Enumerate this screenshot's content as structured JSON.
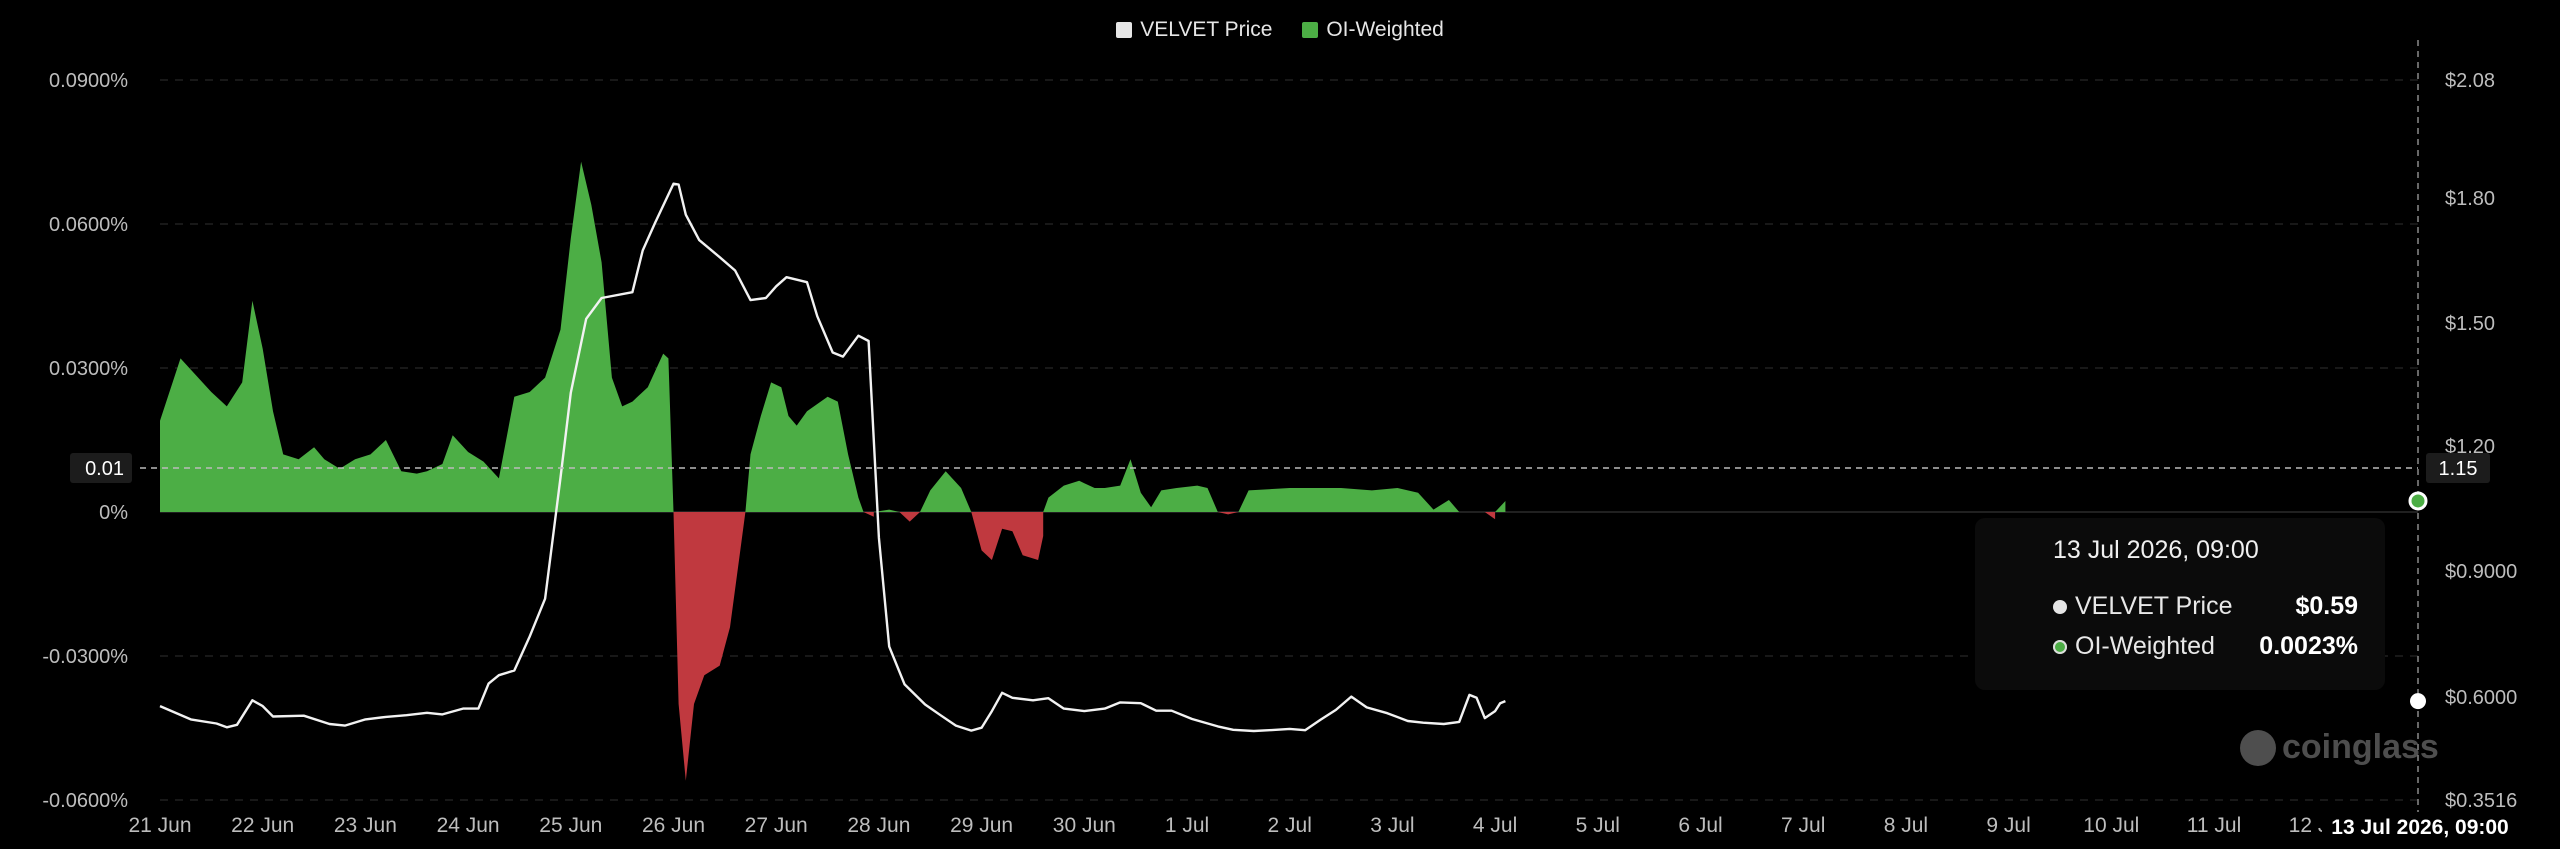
{
  "legend": {
    "price_label": "VELVET Price",
    "oi_label": "OI-Weighted",
    "price_color": "#e6e6e6",
    "oi_color": "#4cae45"
  },
  "tooltip": {
    "title": "13 Jul 2026, 09:00",
    "price_label": "VELVET Price",
    "price_value": "$0.59",
    "oi_label": "OI-Weighted",
    "oi_value": "0.0023%"
  },
  "crosshair": {
    "y_label": "0.01",
    "right_label": "1.15",
    "x_label": "13 Jul 2026, 09:00"
  },
  "watermark": "coinglass",
  "chart_data": {
    "type": "area",
    "x_labels": [
      "21 Jun",
      "22 Jun",
      "23 Jun",
      "24 Jun",
      "25 Jun",
      "26 Jun",
      "27 Jun",
      "28 Jun",
      "29 Jun",
      "30 Jun",
      "1 Jul",
      "2 Jul",
      "3 Jul",
      "4 Jul",
      "5 Jul",
      "6 Jul",
      "7 Jul",
      "8 Jul",
      "9 Jul",
      "10 Jul",
      "11 Jul",
      "12 Jul"
    ],
    "left_axis": {
      "ticks": [
        "0.0900%",
        "0.0600%",
        "0.0300%",
        "0%",
        "-0.0300%",
        "-0.0600%"
      ],
      "range": [
        -0.06,
        0.09
      ]
    },
    "right_axis": {
      "ticks": [
        "$2.08",
        "$1.80",
        "$1.50",
        "$1.20",
        "$0.9000",
        "$0.6000",
        "$0.3516"
      ],
      "range": [
        0.3516,
        2.08
      ]
    },
    "colors": {
      "positive": "#4cae45",
      "negative": "#c0393f",
      "price_line": "#f2f2f2"
    },
    "series": [
      {
        "name": "OI-Weighted",
        "unit": "%",
        "points": [
          [
            0,
            0.019
          ],
          [
            0.2,
            0.032
          ],
          [
            0.5,
            0.025
          ],
          [
            0.65,
            0.022
          ],
          [
            0.8,
            0.027
          ],
          [
            0.9,
            0.044
          ],
          [
            1,
            0.034
          ],
          [
            1.1,
            0.021
          ],
          [
            1.2,
            0.012
          ],
          [
            1.35,
            0.011
          ],
          [
            1.5,
            0.0135
          ],
          [
            1.6,
            0.011
          ],
          [
            1.75,
            0.009
          ],
          [
            1.9,
            0.011
          ],
          [
            2.05,
            0.012
          ],
          [
            2.2,
            0.015
          ],
          [
            2.35,
            0.0085
          ],
          [
            2.5,
            0.008
          ],
          [
            2.6,
            0.0085
          ],
          [
            2.75,
            0.01
          ],
          [
            2.85,
            0.016
          ],
          [
            3,
            0.0125
          ],
          [
            3.15,
            0.0105
          ],
          [
            3.3,
            0.007
          ],
          [
            3.45,
            0.024
          ],
          [
            3.6,
            0.025
          ],
          [
            3.75,
            0.028
          ],
          [
            3.9,
            0.038
          ],
          [
            4,
            0.057
          ],
          [
            4.1,
            0.073
          ],
          [
            4.2,
            0.064
          ],
          [
            4.3,
            0.052
          ],
          [
            4.4,
            0.028
          ],
          [
            4.5,
            0.022
          ],
          [
            4.6,
            0.023
          ],
          [
            4.75,
            0.026
          ],
          [
            4.9,
            0.033
          ],
          [
            4.95,
            0.032
          ],
          [
            5.0,
            0
          ],
          [
            5.05,
            -0.04
          ],
          [
            5.12,
            -0.056
          ],
          [
            5.2,
            -0.04
          ],
          [
            5.3,
            -0.034
          ],
          [
            5.45,
            -0.032
          ],
          [
            5.55,
            -0.024
          ],
          [
            5.65,
            -0.008
          ],
          [
            5.7,
            0
          ],
          [
            5.75,
            0.012
          ],
          [
            5.85,
            0.02
          ],
          [
            5.95,
            0.027
          ],
          [
            6.05,
            0.026
          ],
          [
            6.12,
            0.02
          ],
          [
            6.2,
            0.018
          ],
          [
            6.3,
            0.021
          ],
          [
            6.5,
            0.024
          ],
          [
            6.6,
            0.023
          ],
          [
            6.7,
            0.012
          ],
          [
            6.8,
            0.003
          ],
          [
            6.85,
            0
          ],
          [
            6.95,
            -0.001
          ],
          [
            7.1,
            0.0005
          ],
          [
            7.2,
            0
          ],
          [
            7.3,
            -0.002
          ],
          [
            7.4,
            0
          ],
          [
            7.5,
            0.0045
          ],
          [
            7.65,
            0.0085
          ],
          [
            7.8,
            0.005
          ],
          [
            7.9,
            0
          ],
          [
            8.0,
            -0.008
          ],
          [
            8.1,
            -0.01
          ],
          [
            8.2,
            -0.0035
          ],
          [
            8.3,
            -0.004
          ],
          [
            8.4,
            -0.009
          ],
          [
            8.55,
            -0.01
          ],
          [
            8.6,
            -0.005
          ],
          [
            8.65,
            0.003
          ],
          [
            8.8,
            0.0055
          ],
          [
            8.95,
            0.0065
          ],
          [
            9.0,
            0.006
          ],
          [
            9.1,
            0.005
          ],
          [
            9.2,
            0.005
          ],
          [
            9.35,
            0.0055
          ],
          [
            9.45,
            0.011
          ],
          [
            9.55,
            0.004
          ],
          [
            9.65,
            0.001
          ],
          [
            9.75,
            0.0045
          ],
          [
            9.9,
            0.005
          ],
          [
            10.1,
            0.0055
          ],
          [
            10.2,
            0.005
          ],
          [
            10.3,
            0
          ],
          [
            10.4,
            -0.0005
          ],
          [
            10.5,
            0
          ],
          [
            10.6,
            0.0045
          ],
          [
            11,
            0.005
          ],
          [
            11.5,
            0.005
          ],
          [
            11.8,
            0.0045
          ],
          [
            12.05,
            0.005
          ],
          [
            12.25,
            0.004
          ],
          [
            12.4,
            0.0005
          ],
          [
            12.55,
            0.0025
          ],
          [
            12.65,
            0
          ],
          [
            12.9,
            0
          ],
          [
            13.0,
            -0.0015
          ],
          [
            13.1,
            0.0023
          ]
        ]
      },
      {
        "name": "VELVET Price",
        "unit": "$",
        "points": [
          [
            0,
            0.578
          ],
          [
            0.3,
            0.546
          ],
          [
            0.55,
            0.536
          ],
          [
            0.65,
            0.527
          ],
          [
            0.75,
            0.533
          ],
          [
            0.9,
            0.592
          ],
          [
            1,
            0.578
          ],
          [
            1.1,
            0.553
          ],
          [
            1.4,
            0.555
          ],
          [
            1.65,
            0.535
          ],
          [
            1.8,
            0.531
          ],
          [
            2.0,
            0.546
          ],
          [
            2.2,
            0.552
          ],
          [
            2.4,
            0.556
          ],
          [
            2.6,
            0.562
          ],
          [
            2.75,
            0.558
          ],
          [
            2.95,
            0.572
          ],
          [
            3.1,
            0.572
          ],
          [
            3.2,
            0.632
          ],
          [
            3.3,
            0.652
          ],
          [
            3.45,
            0.663
          ],
          [
            3.6,
            0.744
          ],
          [
            3.75,
            0.834
          ],
          [
            3.9,
            1.124
          ],
          [
            4,
            1.33
          ],
          [
            4.15,
            1.51
          ],
          [
            4.3,
            1.56
          ],
          [
            4.6,
            1.574
          ],
          [
            4.7,
            1.674
          ],
          [
            4.82,
            1.74
          ],
          [
            5.0,
            1.834
          ],
          [
            5.05,
            1.832
          ],
          [
            5.12,
            1.76
          ],
          [
            5.25,
            1.699
          ],
          [
            5.45,
            1.658
          ],
          [
            5.6,
            1.626
          ],
          [
            5.75,
            1.555
          ],
          [
            5.9,
            1.56
          ],
          [
            6.0,
            1.588
          ],
          [
            6.1,
            1.61
          ],
          [
            6.3,
            1.598
          ],
          [
            6.4,
            1.516
          ],
          [
            6.55,
            1.428
          ],
          [
            6.65,
            1.418
          ],
          [
            6.8,
            1.469
          ],
          [
            6.9,
            1.456
          ],
          [
            7.0,
            0.98
          ],
          [
            7.1,
            0.72
          ],
          [
            7.25,
            0.63
          ],
          [
            7.45,
            0.582
          ],
          [
            7.6,
            0.556
          ],
          [
            7.75,
            0.531
          ],
          [
            7.9,
            0.519
          ],
          [
            8.0,
            0.526
          ],
          [
            8.1,
            0.566
          ],
          [
            8.2,
            0.61
          ],
          [
            8.3,
            0.598
          ],
          [
            8.5,
            0.592
          ],
          [
            8.65,
            0.597
          ],
          [
            8.8,
            0.572
          ],
          [
            9.0,
            0.566
          ],
          [
            9.2,
            0.572
          ],
          [
            9.35,
            0.587
          ],
          [
            9.55,
            0.585
          ],
          [
            9.7,
            0.567
          ],
          [
            9.85,
            0.567
          ],
          [
            10.05,
            0.547
          ],
          [
            10.3,
            0.529
          ],
          [
            10.45,
            0.521
          ],
          [
            10.65,
            0.518
          ],
          [
            10.8,
            0.52
          ],
          [
            11.0,
            0.523
          ],
          [
            11.15,
            0.52
          ],
          [
            11.3,
            0.545
          ],
          [
            11.45,
            0.569
          ],
          [
            11.6,
            0.601
          ],
          [
            11.75,
            0.575
          ],
          [
            11.95,
            0.561
          ],
          [
            12.15,
            0.542
          ],
          [
            12.3,
            0.538
          ],
          [
            12.5,
            0.535
          ],
          [
            12.65,
            0.54
          ],
          [
            12.75,
            0.605
          ],
          [
            12.82,
            0.598
          ],
          [
            12.9,
            0.549
          ],
          [
            13.0,
            0.566
          ],
          [
            13.05,
            0.585
          ],
          [
            13.1,
            0.59
          ]
        ]
      }
    ],
    "grid": true,
    "legend_position": "top-center"
  }
}
